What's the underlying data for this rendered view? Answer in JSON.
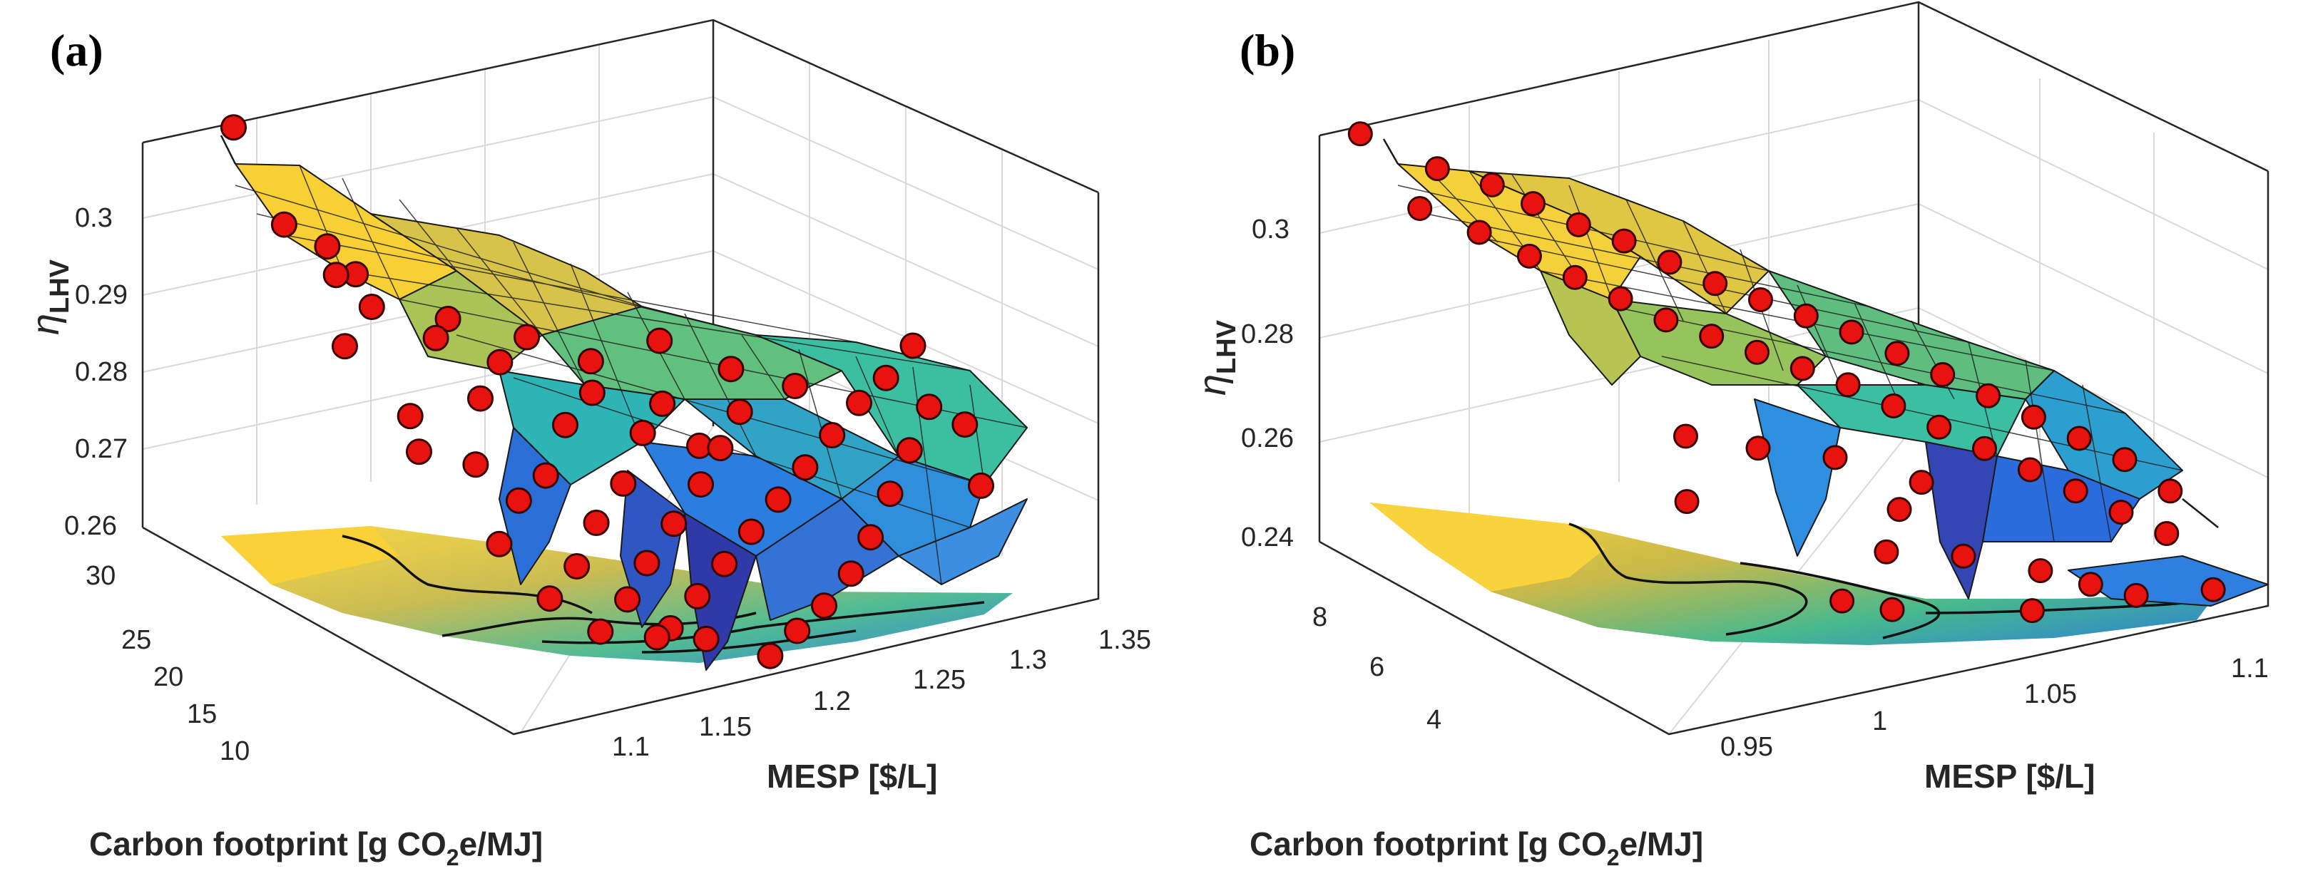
{
  "figure": {
    "panels": [
      {
        "label": "(a)"
      },
      {
        "label": "(b)"
      }
    ],
    "colors": {
      "point_fill": "#e8130f",
      "surface_high": "#f7d93a",
      "surface_mid": "#3cbfa0",
      "surface_low": "#2f3aa8"
    }
  },
  "chart_data": [
    {
      "type": "surface3d",
      "title": "(a)",
      "xlabel": "MESP [$/L]",
      "ylabel": "Carbon footprint [g CO2e/MJ]",
      "ylabel_parts": {
        "main": "Carbon footprint [g CO",
        "sub": "2",
        "tail": "e/MJ]"
      },
      "zlabel_parts": {
        "main": "η",
        "sub": "LHV"
      },
      "xticks": [
        "1.1",
        "1.15",
        "1.2",
        "1.25",
        "1.3",
        "1.35"
      ],
      "yticks": [
        "10",
        "15",
        "20",
        "25",
        "30"
      ],
      "zticks": [
        "0.26",
        "0.27",
        "0.28",
        "0.29",
        "0.3"
      ],
      "xlim": [
        1.08,
        1.36
      ],
      "ylim": [
        9,
        34
      ],
      "zlim": [
        0.258,
        0.312
      ],
      "scatter": [
        [
          1.12,
          33.5,
          0.312
        ],
        [
          1.13,
          31.5,
          0.3
        ],
        [
          1.14,
          30,
          0.298
        ],
        [
          1.13,
          28,
          0.297
        ],
        [
          1.15,
          29.5,
          0.294
        ],
        [
          1.14,
          27,
          0.293
        ],
        [
          1.12,
          26,
          0.29
        ],
        [
          1.16,
          25.5,
          0.289
        ],
        [
          1.18,
          27.5,
          0.288
        ],
        [
          1.13,
          23,
          0.283
        ],
        [
          1.12,
          21,
          0.281
        ],
        [
          1.16,
          22.5,
          0.284
        ],
        [
          1.18,
          24,
          0.286
        ],
        [
          1.2,
          25,
          0.287
        ],
        [
          1.14,
          20,
          0.279
        ],
        [
          1.15,
          18.5,
          0.275
        ],
        [
          1.13,
          17,
          0.272
        ],
        [
          1.17,
          19.5,
          0.276
        ],
        [
          1.19,
          21,
          0.28
        ],
        [
          1.21,
          22,
          0.282
        ],
        [
          1.16,
          16,
          0.268
        ],
        [
          1.14,
          15,
          0.266
        ],
        [
          1.18,
          17.5,
          0.271
        ],
        [
          1.2,
          18.5,
          0.274
        ],
        [
          1.22,
          20,
          0.278
        ],
        [
          1.24,
          21.5,
          0.279
        ],
        [
          1.17,
          14,
          0.265
        ],
        [
          1.19,
          15.5,
          0.267
        ],
        [
          1.21,
          16.5,
          0.27
        ],
        [
          1.23,
          17.5,
          0.273
        ],
        [
          1.25,
          19,
          0.275
        ],
        [
          1.27,
          20.5,
          0.277
        ],
        [
          1.15,
          13,
          0.263
        ],
        [
          1.18,
          12.5,
          0.262
        ],
        [
          1.2,
          13.5,
          0.264
        ],
        [
          1.22,
          14.5,
          0.266
        ],
        [
          1.24,
          15.5,
          0.268
        ],
        [
          1.26,
          16.5,
          0.27
        ],
        [
          1.28,
          17.5,
          0.272
        ],
        [
          1.3,
          18.5,
          0.274
        ],
        [
          1.32,
          19.5,
          0.276
        ],
        [
          1.34,
          20.5,
          0.277
        ],
        [
          1.35,
          19,
          0.274
        ],
        [
          1.33,
          17.5,
          0.271
        ],
        [
          1.31,
          16,
          0.268
        ],
        [
          1.29,
          14.5,
          0.265
        ],
        [
          1.27,
          13,
          0.263
        ],
        [
          1.25,
          12,
          0.261
        ],
        [
          1.23,
          11,
          0.26
        ],
        [
          1.21,
          10,
          0.259
        ],
        [
          1.19,
          11.5,
          0.261
        ],
        [
          1.17,
          12,
          0.262
        ],
        [
          1.36,
          21.5,
          0.279
        ],
        [
          1.36,
          18,
          0.272
        ],
        [
          1.35,
          15.5,
          0.267
        ],
        [
          1.22,
          23.5,
          0.284
        ],
        [
          1.26,
          24.5,
          0.283
        ],
        [
          1.28,
          22.5,
          0.28
        ],
        [
          1.3,
          21,
          0.278
        ],
        [
          1.24,
          19,
          0.276
        ]
      ]
    },
    {
      "type": "surface3d",
      "title": "(b)",
      "xlabel": "MESP [$/L]",
      "ylabel": "Carbon footprint [g CO2e/MJ]",
      "ylabel_parts": {
        "main": "Carbon footprint [g CO",
        "sub": "2",
        "tail": "e/MJ]"
      },
      "zlabel_parts": {
        "main": "η",
        "sub": "LHV"
      },
      "xticks": [
        "0.95",
        "1",
        "1.05",
        "1.1"
      ],
      "yticks": [
        "4",
        "6",
        "8"
      ],
      "zticks": [
        "0.24",
        "0.26",
        "0.28",
        "0.3"
      ],
      "xlim": [
        0.92,
        1.11
      ],
      "ylim": [
        2.5,
        10
      ],
      "zlim": [
        0.238,
        0.318
      ],
      "scatter": [
        [
          0.93,
          9.8,
          0.318
        ],
        [
          0.94,
          9.2,
          0.305
        ],
        [
          0.95,
          9.5,
          0.31
        ],
        [
          0.96,
          9.0,
          0.308
        ],
        [
          0.95,
          8.6,
          0.302
        ],
        [
          0.97,
          8.8,
          0.304
        ],
        [
          0.96,
          8.2,
          0.298
        ],
        [
          0.98,
          8.5,
          0.3
        ],
        [
          0.97,
          7.9,
          0.294
        ],
        [
          0.99,
          8.2,
          0.297
        ],
        [
          0.98,
          7.6,
          0.29
        ],
        [
          1.0,
          7.9,
          0.293
        ],
        [
          0.99,
          7.3,
          0.286
        ],
        [
          1.01,
          7.6,
          0.289
        ],
        [
          1.0,
          7.0,
          0.283
        ],
        [
          1.02,
          7.3,
          0.286
        ],
        [
          1.01,
          6.7,
          0.28
        ],
        [
          1.03,
          7.0,
          0.283
        ],
        [
          1.02,
          6.4,
          0.277
        ],
        [
          1.04,
          6.7,
          0.28
        ],
        [
          1.03,
          6.1,
          0.274
        ],
        [
          1.05,
          6.4,
          0.276
        ],
        [
          1.04,
          5.8,
          0.27
        ],
        [
          1.06,
          6.1,
          0.272
        ],
        [
          1.05,
          5.5,
          0.266
        ],
        [
          1.07,
          5.8,
          0.268
        ],
        [
          1.06,
          5.2,
          0.262
        ],
        [
          1.08,
          5.5,
          0.264
        ],
        [
          1.07,
          4.9,
          0.258
        ],
        [
          1.09,
          5.2,
          0.26
        ],
        [
          1.08,
          4.6,
          0.254
        ],
        [
          1.1,
          4.9,
          0.256
        ],
        [
          1.09,
          4.3,
          0.25
        ],
        [
          1.1,
          4.0,
          0.246
        ],
        [
          1.11,
          4.6,
          0.25
        ],
        [
          1.0,
          4.2,
          0.245
        ],
        [
          1.01,
          3.8,
          0.244
        ],
        [
          1.02,
          4.6,
          0.25
        ],
        [
          1.03,
          5.0,
          0.255
        ],
        [
          1.04,
          4.3,
          0.248
        ],
        [
          1.06,
          4.0,
          0.244
        ],
        [
          1.07,
          3.6,
          0.242
        ],
        [
          1.08,
          3.3,
          0.24
        ],
        [
          1.05,
          3.5,
          0.24
        ],
        [
          1.1,
          3.0,
          0.24
        ],
        [
          0.97,
          5.5,
          0.262
        ],
        [
          0.98,
          6.2,
          0.27
        ],
        [
          1.0,
          6.0,
          0.266
        ],
        [
          1.02,
          5.7,
          0.263
        ],
        [
          1.04,
          5.2,
          0.258
        ]
      ]
    }
  ]
}
